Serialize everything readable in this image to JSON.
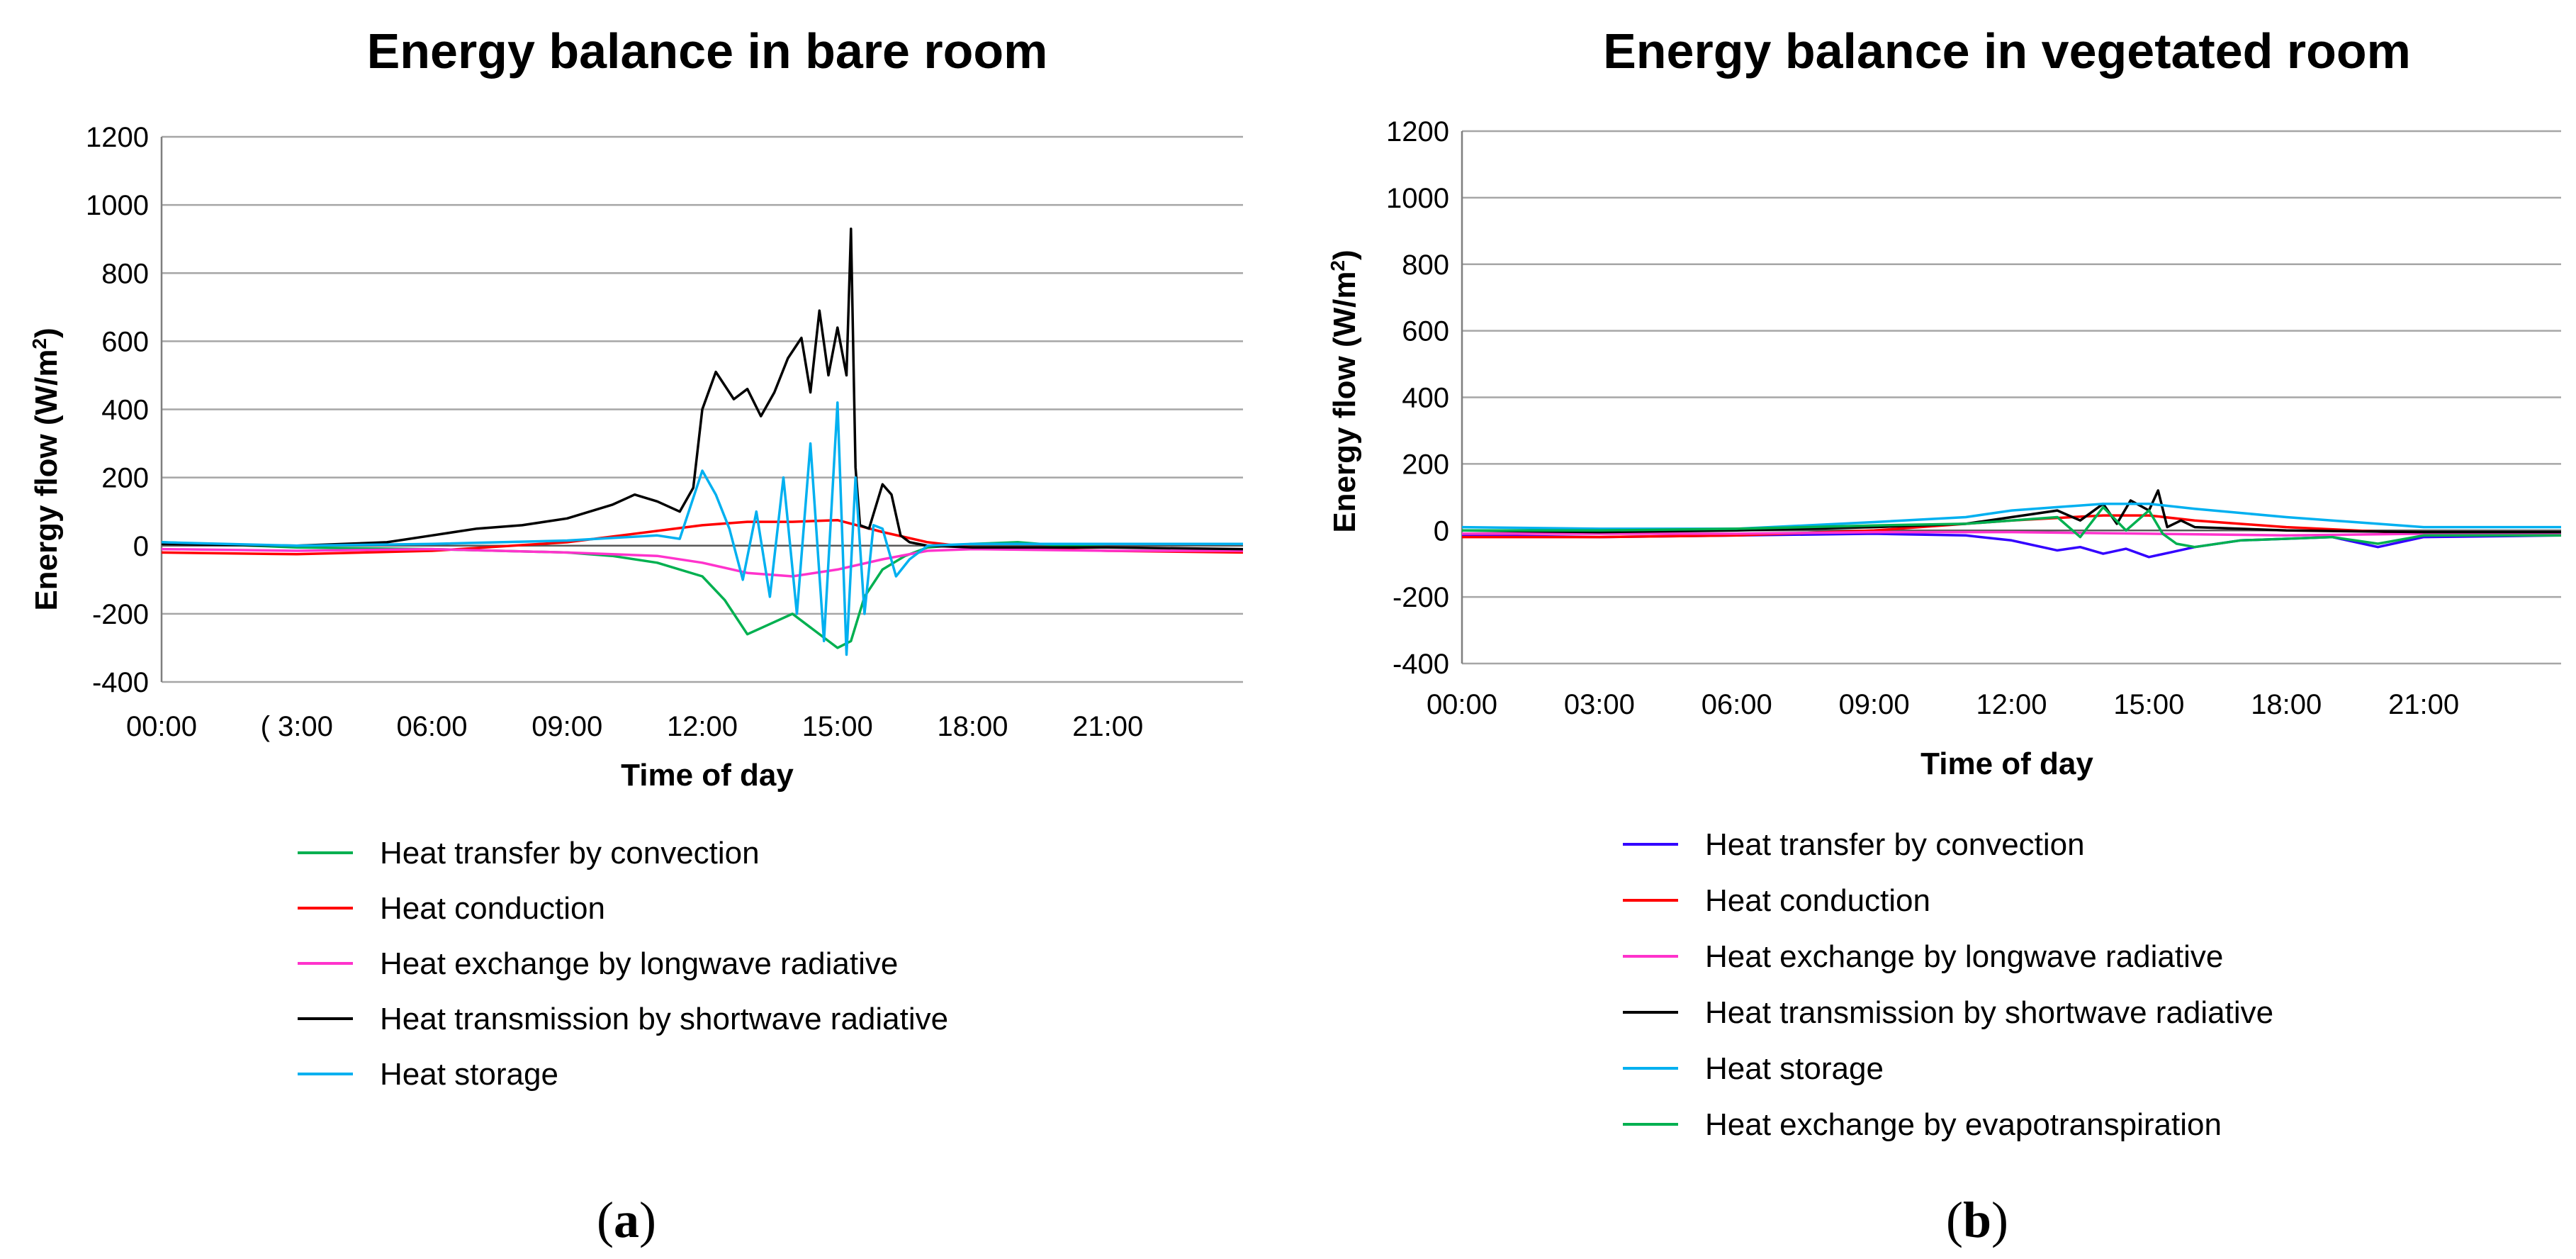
{
  "chart_data": [
    {
      "type": "line",
      "title": "Energy balance in bare room",
      "xlabel": "Time of day",
      "ylabel": "Energy flow (W/m²)",
      "ylabel_main": "Energy flow (W/m",
      "ylabel_sup": "2",
      "ylabel_tail": ")",
      "ylim": [
        -400,
        1200
      ],
      "yticks": [
        "1200",
        "1000",
        "800",
        "600",
        "400",
        "200",
        "0",
        "-200",
        "-400"
      ],
      "xlim": [
        0,
        24
      ],
      "xticks": [
        "00:00",
        "( 3:00",
        "06:00",
        "09:00",
        "12:00",
        "15:00",
        "18:00",
        "21:00"
      ],
      "caption": "a",
      "series": [
        {
          "name": "Heat transfer by convection",
          "color": "#00b050",
          "x": [
            0,
            3,
            6,
            9,
            10,
            11,
            12,
            12.5,
            13,
            13.5,
            14,
            14.5,
            15,
            15.3,
            15.6,
            16,
            16.5,
            17,
            18,
            19,
            20,
            21,
            24
          ],
          "y": [
            10,
            -5,
            -10,
            -20,
            -30,
            -50,
            -90,
            -160,
            -260,
            -230,
            -200,
            -250,
            -300,
            -280,
            -150,
            -70,
            -30,
            -5,
            5,
            10,
            0,
            5,
            5
          ]
        },
        {
          "name": "Heat conduction",
          "color": "#ff0000",
          "x": [
            0,
            3,
            6,
            9,
            12,
            13,
            14,
            15,
            16,
            17,
            18,
            21,
            24
          ],
          "y": [
            -20,
            -25,
            -15,
            10,
            60,
            70,
            70,
            75,
            40,
            10,
            -5,
            -15,
            -20
          ]
        },
        {
          "name": "Heat exchange by longwave radiative",
          "color": "#ff33cc",
          "x": [
            0,
            3,
            6,
            9,
            11,
            12,
            13,
            14,
            15,
            16,
            17,
            18,
            21,
            24
          ],
          "y": [
            -10,
            -15,
            -10,
            -20,
            -30,
            -50,
            -80,
            -90,
            -70,
            -40,
            -15,
            -10,
            -15,
            -15
          ]
        },
        {
          "name": "Heat transmission by shortwave radiative",
          "color": "#000000",
          "x": [
            0,
            3,
            5,
            6,
            7,
            8,
            9,
            10,
            10.5,
            11,
            11.5,
            11.8,
            12,
            12.3,
            12.7,
            13,
            13.3,
            13.6,
            13.9,
            14.2,
            14.4,
            14.6,
            14.8,
            15,
            15.2,
            15.3,
            15.4,
            15.5,
            15.7,
            16,
            16.2,
            16.4,
            16.6,
            17,
            18,
            21,
            24
          ],
          "y": [
            5,
            0,
            10,
            30,
            50,
            60,
            80,
            120,
            150,
            130,
            100,
            170,
            400,
            510,
            430,
            460,
            380,
            450,
            550,
            610,
            450,
            690,
            500,
            640,
            500,
            930,
            230,
            60,
            50,
            180,
            150,
            30,
            10,
            0,
            -5,
            -5,
            -10
          ]
        },
        {
          "name": "Heat storage",
          "color": "#00b0f0",
          "x": [
            0,
            3,
            6,
            9,
            11,
            11.5,
            12,
            12.3,
            12.6,
            12.9,
            13.2,
            13.5,
            13.8,
            14.1,
            14.4,
            14.7,
            15,
            15.2,
            15.4,
            15.6,
            15.8,
            16,
            16.3,
            16.6,
            17,
            18,
            21,
            24
          ],
          "y": [
            10,
            0,
            5,
            15,
            30,
            20,
            220,
            150,
            50,
            -100,
            100,
            -150,
            200,
            -200,
            300,
            -280,
            420,
            -320,
            200,
            -200,
            60,
            50,
            -90,
            -40,
            0,
            5,
            5,
            5
          ]
        }
      ]
    },
    {
      "type": "line",
      "title": "Energy balance in vegetated room",
      "xlabel": "Time of day",
      "ylabel": "Energy flow (W/m²)",
      "ylabel_main": "Energy flow (W/m",
      "ylabel_sup": "2",
      "ylabel_tail": ")",
      "ylim": [
        -400,
        1200
      ],
      "yticks": [
        "1200",
        "1000",
        "800",
        "600",
        "400",
        "200",
        "0",
        "-200",
        "-400"
      ],
      "xlim": [
        0,
        24
      ],
      "xticks": [
        "00:00",
        "03:00",
        "06:00",
        "09:00",
        "12:00",
        "15:00",
        "18:00",
        "21:00"
      ],
      "caption": "b",
      "series": [
        {
          "name": "Heat transfer by convection",
          "color": "#3300ff",
          "x": [
            0,
            3,
            6,
            9,
            11,
            12,
            13,
            13.5,
            14,
            14.5,
            15,
            15.5,
            16,
            17,
            18,
            19,
            20,
            21,
            24
          ],
          "y": [
            -15,
            -20,
            -15,
            -10,
            -15,
            -30,
            -60,
            -50,
            -70,
            -55,
            -80,
            -65,
            -50,
            -30,
            -25,
            -20,
            -50,
            -20,
            -15
          ]
        },
        {
          "name": "Heat conduction",
          "color": "#ff0000",
          "x": [
            0,
            3,
            6,
            9,
            12,
            14,
            15,
            16,
            18,
            21,
            24
          ],
          "y": [
            -20,
            -20,
            -15,
            0,
            30,
            45,
            45,
            30,
            10,
            -10,
            -15
          ]
        },
        {
          "name": "Heat exchange by longwave radiative",
          "color": "#ff33cc",
          "x": [
            0,
            3,
            6,
            9,
            12,
            15,
            18,
            21,
            24
          ],
          "y": [
            -10,
            -10,
            -10,
            -5,
            -5,
            -10,
            -15,
            -10,
            -10
          ]
        },
        {
          "name": "Heat transmission by shortwave radiative",
          "color": "#000000",
          "x": [
            0,
            3,
            6,
            9,
            11,
            12,
            13,
            13.5,
            14,
            14.3,
            14.6,
            15,
            15.2,
            15.4,
            15.7,
            16,
            17,
            18,
            21,
            24
          ],
          "y": [
            0,
            -5,
            0,
            10,
            20,
            40,
            60,
            30,
            80,
            20,
            90,
            60,
            120,
            10,
            30,
            10,
            5,
            0,
            -5,
            -5
          ]
        },
        {
          "name": "Heat storage",
          "color": "#00b0f0",
          "x": [
            0,
            3,
            6,
            9,
            11,
            12,
            13,
            14,
            15,
            16,
            18,
            20,
            21,
            24
          ],
          "y": [
            10,
            5,
            5,
            25,
            40,
            60,
            70,
            80,
            80,
            65,
            40,
            20,
            10,
            10
          ]
        },
        {
          "name": "Heat exchange by evapotranspiration",
          "color": "#00b050",
          "x": [
            0,
            3,
            6,
            9,
            11,
            12,
            13,
            13.5,
            14,
            14.5,
            15,
            15.3,
            15.6,
            16,
            17,
            18,
            19,
            20,
            21,
            24
          ],
          "y": [
            0,
            0,
            5,
            15,
            20,
            30,
            40,
            -20,
            70,
            0,
            60,
            -10,
            -40,
            -50,
            -30,
            -25,
            -20,
            -40,
            -15,
            -15
          ]
        }
      ]
    }
  ]
}
